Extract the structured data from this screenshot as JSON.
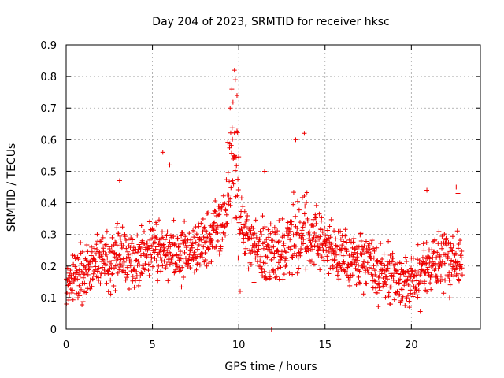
{
  "chart_data": {
    "type": "scatter",
    "title": "Day 204 of 2023, SRMTID for receiver hksc",
    "xlabel": "GPS time / hours",
    "ylabel": "SRMTID / TECUs",
    "xlim": [
      0,
      24
    ],
    "ylim": [
      0,
      0.9
    ],
    "xticks": [
      0,
      5,
      10,
      15,
      20
    ],
    "xtick_labels": [
      "0",
      "5",
      "10",
      "15",
      "20"
    ],
    "yticks": [
      0,
      0.1,
      0.2,
      0.3,
      0.4,
      0.5,
      0.6,
      0.7,
      0.8,
      0.9
    ],
    "ytick_labels": [
      "0",
      "0.1",
      "0.2",
      "0.3",
      "0.4",
      "0.5",
      "0.6",
      "0.7",
      "0.8",
      "0.9"
    ],
    "grid": true,
    "marker": "+",
    "point_color": "#ee0000",
    "series": [
      {
        "name": "SRMTID",
        "profile_description": "dense scatter of ~1 value per minute, 0 to 23 h",
        "baseline_knots": [
          [
            0.0,
            0.15
          ],
          [
            1.0,
            0.17
          ],
          [
            2.0,
            0.21
          ],
          [
            3.0,
            0.23
          ],
          [
            4.0,
            0.22
          ],
          [
            5.0,
            0.27
          ],
          [
            6.0,
            0.25
          ],
          [
            7.0,
            0.24
          ],
          [
            8.0,
            0.27
          ],
          [
            9.0,
            0.33
          ],
          [
            9.7,
            0.52
          ],
          [
            10.2,
            0.3
          ],
          [
            11.0,
            0.25
          ],
          [
            12.0,
            0.23
          ],
          [
            13.0,
            0.28
          ],
          [
            14.0,
            0.3
          ],
          [
            15.0,
            0.27
          ],
          [
            16.0,
            0.23
          ],
          [
            17.0,
            0.22
          ],
          [
            18.0,
            0.18
          ],
          [
            19.0,
            0.17
          ],
          [
            20.0,
            0.14
          ],
          [
            21.0,
            0.19
          ],
          [
            22.0,
            0.22
          ],
          [
            23.0,
            0.2
          ]
        ],
        "notable_points": [
          [
            9.75,
            0.82
          ],
          [
            9.8,
            0.79
          ],
          [
            9.6,
            0.76
          ],
          [
            9.9,
            0.74
          ],
          [
            9.5,
            0.7
          ],
          [
            13.3,
            0.6
          ],
          [
            13.8,
            0.62
          ],
          [
            5.6,
            0.56
          ],
          [
            6.0,
            0.52
          ],
          [
            11.5,
            0.5
          ],
          [
            20.9,
            0.44
          ],
          [
            22.6,
            0.45
          ],
          [
            22.7,
            0.43
          ],
          [
            3.1,
            0.47
          ],
          [
            11.9,
            0.0
          ]
        ]
      }
    ]
  }
}
